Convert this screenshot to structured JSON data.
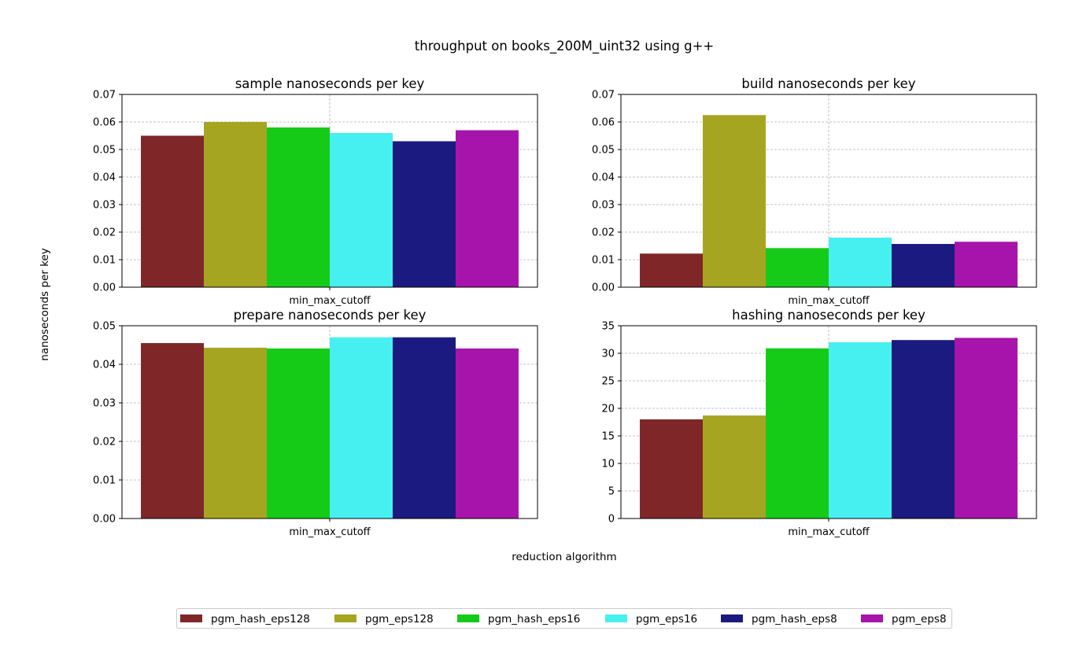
{
  "figure": {
    "title": "throughput on books_200M_uint32 using g++",
    "ylabel": "nanoseconds per key",
    "xlabel": "reduction algorithm"
  },
  "legend": {
    "placement": "bottom-center",
    "items": [
      {
        "name": "pgm_hash_eps128",
        "color": "#7f2628"
      },
      {
        "name": "pgm_eps128",
        "color": "#a6a521"
      },
      {
        "name": "pgm_hash_eps16",
        "color": "#15cb18"
      },
      {
        "name": "pgm_eps16",
        "color": "#47f0f0"
      },
      {
        "name": "pgm_hash_eps8",
        "color": "#1b1a80"
      },
      {
        "name": "pgm_eps8",
        "color": "#a714ab"
      }
    ]
  },
  "chart_data": [
    {
      "type": "bar",
      "title": "sample nanoseconds per key",
      "categories": [
        "min_max_cutoff"
      ],
      "ylim": [
        0,
        0.07
      ],
      "yticks": [
        0,
        0.01,
        0.02,
        0.03,
        0.04,
        0.05,
        0.06,
        0.07
      ],
      "ytick_labels": [
        "0.00",
        "0.01",
        "0.02",
        "0.03",
        "0.04",
        "0.05",
        "0.06",
        "0.07"
      ],
      "grid": true,
      "series": [
        {
          "name": "pgm_hash_eps128",
          "values": [
            0.055
          ]
        },
        {
          "name": "pgm_eps128",
          "values": [
            0.06
          ]
        },
        {
          "name": "pgm_hash_eps16",
          "values": [
            0.058
          ]
        },
        {
          "name": "pgm_eps16",
          "values": [
            0.056
          ]
        },
        {
          "name": "pgm_hash_eps8",
          "values": [
            0.053
          ]
        },
        {
          "name": "pgm_eps8",
          "values": [
            0.057
          ]
        }
      ]
    },
    {
      "type": "bar",
      "title": "build nanoseconds per key",
      "categories": [
        "min_max_cutoff"
      ],
      "ylim": [
        0,
        0.07
      ],
      "yticks": [
        0,
        0.01,
        0.02,
        0.03,
        0.04,
        0.05,
        0.06,
        0.07
      ],
      "ytick_labels": [
        "0.00",
        "0.01",
        "0.02",
        "0.03",
        "0.04",
        "0.05",
        "0.06",
        "0.07"
      ],
      "grid": true,
      "series": [
        {
          "name": "pgm_hash_eps128",
          "values": [
            0.0122
          ]
        },
        {
          "name": "pgm_eps128",
          "values": [
            0.0625
          ]
        },
        {
          "name": "pgm_hash_eps16",
          "values": [
            0.0142
          ]
        },
        {
          "name": "pgm_eps16",
          "values": [
            0.018
          ]
        },
        {
          "name": "pgm_hash_eps8",
          "values": [
            0.0157
          ]
        },
        {
          "name": "pgm_eps8",
          "values": [
            0.0165
          ]
        }
      ]
    },
    {
      "type": "bar",
      "title": "prepare nanoseconds per key",
      "categories": [
        "min_max_cutoff"
      ],
      "ylim": [
        0,
        0.05
      ],
      "yticks": [
        0,
        0.01,
        0.02,
        0.03,
        0.04,
        0.05
      ],
      "ytick_labels": [
        "0.00",
        "0.01",
        "0.02",
        "0.03",
        "0.04",
        "0.05"
      ],
      "grid": true,
      "series": [
        {
          "name": "pgm_hash_eps128",
          "values": [
            0.0455
          ]
        },
        {
          "name": "pgm_eps128",
          "values": [
            0.0443
          ]
        },
        {
          "name": "pgm_hash_eps16",
          "values": [
            0.0441
          ]
        },
        {
          "name": "pgm_eps16",
          "values": [
            0.047
          ]
        },
        {
          "name": "pgm_hash_eps8",
          "values": [
            0.047
          ]
        },
        {
          "name": "pgm_eps8",
          "values": [
            0.0441
          ]
        }
      ]
    },
    {
      "type": "bar",
      "title": "hashing nanoseconds per key",
      "categories": [
        "min_max_cutoff"
      ],
      "ylim": [
        0,
        35
      ],
      "yticks": [
        0,
        5,
        10,
        15,
        20,
        25,
        30,
        35
      ],
      "ytick_labels": [
        "0",
        "5",
        "10",
        "15",
        "20",
        "25",
        "30",
        "35"
      ],
      "grid": true,
      "series": [
        {
          "name": "pgm_hash_eps128",
          "values": [
            18.0
          ]
        },
        {
          "name": "pgm_eps128",
          "values": [
            18.7
          ]
        },
        {
          "name": "pgm_hash_eps16",
          "values": [
            30.9
          ]
        },
        {
          "name": "pgm_eps16",
          "values": [
            32.0
          ]
        },
        {
          "name": "pgm_hash_eps8",
          "values": [
            32.4
          ]
        },
        {
          "name": "pgm_eps8",
          "values": [
            32.8
          ]
        }
      ]
    }
  ]
}
